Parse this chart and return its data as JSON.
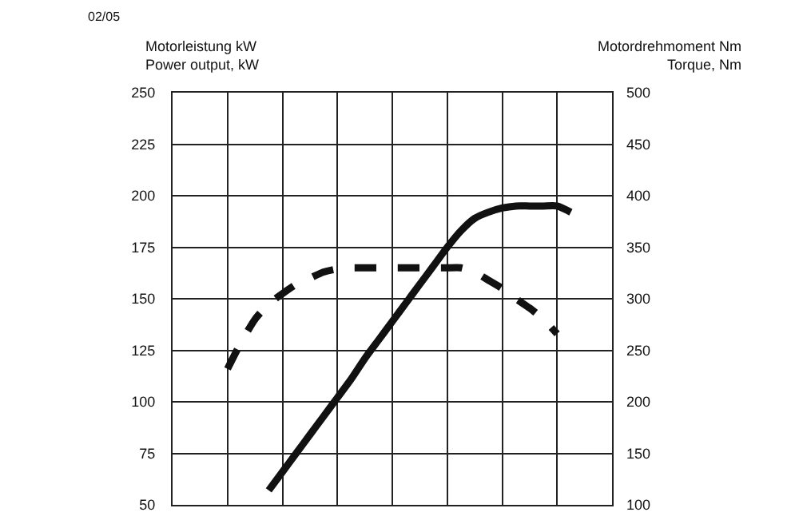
{
  "chart_data": {
    "type": "line",
    "ylabel": "Motorleistung kW\nPower output, kW",
    "y2label": "Motordrehmoment Nm\nTorque, Nm",
    "annotations": [
      "02/05"
    ],
    "categories": [
      null,
      null,
      null,
      null,
      null,
      null,
      null,
      null,
      null,
      null,
      null,
      null,
      null,
      null,
      null,
      null,
      null,
      null,
      null,
      null,
      null,
      null,
      null,
      null,
      null,
      null,
      null,
      null,
      null,
      null,
      null,
      null,
      null
    ],
    "series": [
      {
        "color": "#111111",
        "line_style": "solid",
        "values": [
          null,
          null,
          null,
          null,
          null,
          null,
          null,
          57,
          66,
          75,
          84,
          93,
          102,
          111,
          121,
          130,
          139,
          148,
          157,
          166,
          175,
          183,
          189,
          192,
          194,
          195,
          195,
          195,
          195,
          192,
          null,
          null,
          null
        ]
      },
      {
        "color": "#111111",
        "line_style": "dashed",
        "axis": "y2",
        "values": [
          null,
          null,
          null,
          null,
          232,
          258,
          280,
          295,
          305,
          314,
          320,
          326,
          329,
          330,
          330,
          330,
          330,
          330,
          330,
          330,
          330,
          330,
          326,
          318,
          310,
          300,
          291,
          280,
          266,
          null,
          null,
          null,
          null
        ]
      }
    ],
    "ylim": [
      50,
      250
    ],
    "yticks": [
      50,
      75,
      100,
      125,
      150,
      175,
      200,
      225,
      250
    ],
    "y2lim": [
      100,
      500
    ],
    "y2ticks": [
      100,
      150,
      200,
      250,
      300,
      350,
      400,
      450,
      500
    ],
    "grid": true,
    "legend": false,
    "marker": "none",
    "tick_labels": "y"
  }
}
